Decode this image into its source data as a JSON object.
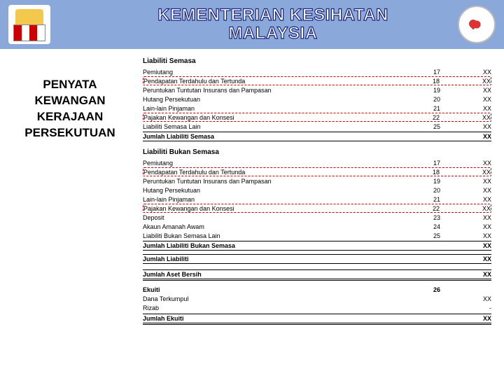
{
  "header": {
    "title_line1": "KEMENTERIAN KESIHATAN",
    "title_line2": "MALAYSIA"
  },
  "left_panel": {
    "line1": "PENYATA",
    "line2": "KEWANGAN",
    "line3": "KERAJAAN",
    "line4": "PERSEKUTUAN"
  },
  "section_a": {
    "title": "Liabiliti Semasa",
    "rows": [
      {
        "label": "Pemiutang",
        "note": "17",
        "val": "XX",
        "hl": false
      },
      {
        "label": "Pendapatan Terdahulu dan Tertunda",
        "note": "18",
        "val": "XX",
        "hl": true
      },
      {
        "label": "Peruntukan Tuntutan Insurans dan Pampasan",
        "note": "19",
        "val": "XX",
        "hl": false
      },
      {
        "label": "Hutang Persekutuan",
        "note": "20",
        "val": "XX",
        "hl": false
      },
      {
        "label": "Lain-lain Pinjaman",
        "note": "21",
        "val": "XX",
        "hl": false
      },
      {
        "label": "Pajakan Kewangan dan Konsesi",
        "note": "22",
        "val": "XX",
        "hl": true
      },
      {
        "label": "Liabiliti Semasa Lain",
        "note": "25",
        "val": "XX",
        "hl": false
      }
    ],
    "subtotal_label": "Jumlah Liabiliti Semasa",
    "subtotal_val": "XX"
  },
  "section_b": {
    "title": "Liabiliti Bukan Semasa",
    "rows": [
      {
        "label": "Pemiutang",
        "note": "17",
        "val": "XX",
        "hl": false
      },
      {
        "label": "Pendapatan Terdahulu dan Tertunda",
        "note": "18",
        "val": "XX",
        "hl": true
      },
      {
        "label": "Peruntukan Tuntutan Insurans dan Pampasan",
        "note": "19",
        "val": "XX",
        "hl": false
      },
      {
        "label": "Hutang Persekutuan",
        "note": "20",
        "val": "XX",
        "hl": false
      },
      {
        "label": "Lain-lain Pinjaman",
        "note": "21",
        "val": "XX",
        "hl": false
      },
      {
        "label": "Pajakan Kewangan dan Konsesi",
        "note": "22",
        "val": "XX",
        "hl": true
      },
      {
        "label": "Deposit",
        "note": "23",
        "val": "XX",
        "hl": false
      },
      {
        "label": "Akaun Amanah Awam",
        "note": "24",
        "val": "XX",
        "hl": false
      },
      {
        "label": "Liabiliti Bukan Semasa Lain",
        "note": "25",
        "val": "XX",
        "hl": false
      }
    ],
    "subtotal_label": "Jumlah Liabiliti Bukan Semasa",
    "subtotal_val": "XX"
  },
  "total_liab": {
    "label": "Jumlah Liabiliti",
    "val": "XX"
  },
  "net_assets": {
    "label": "Jumlah Aset Bersih",
    "val": "XX"
  },
  "equity": {
    "title": "Ekuiti",
    "note": "26",
    "rows": [
      {
        "label": "Dana Terkumpul",
        "val": "XX"
      },
      {
        "label": "Rizab",
        "val": "-"
      }
    ],
    "total_label": "Jumlah Ekuiti",
    "total_val": "XX"
  }
}
